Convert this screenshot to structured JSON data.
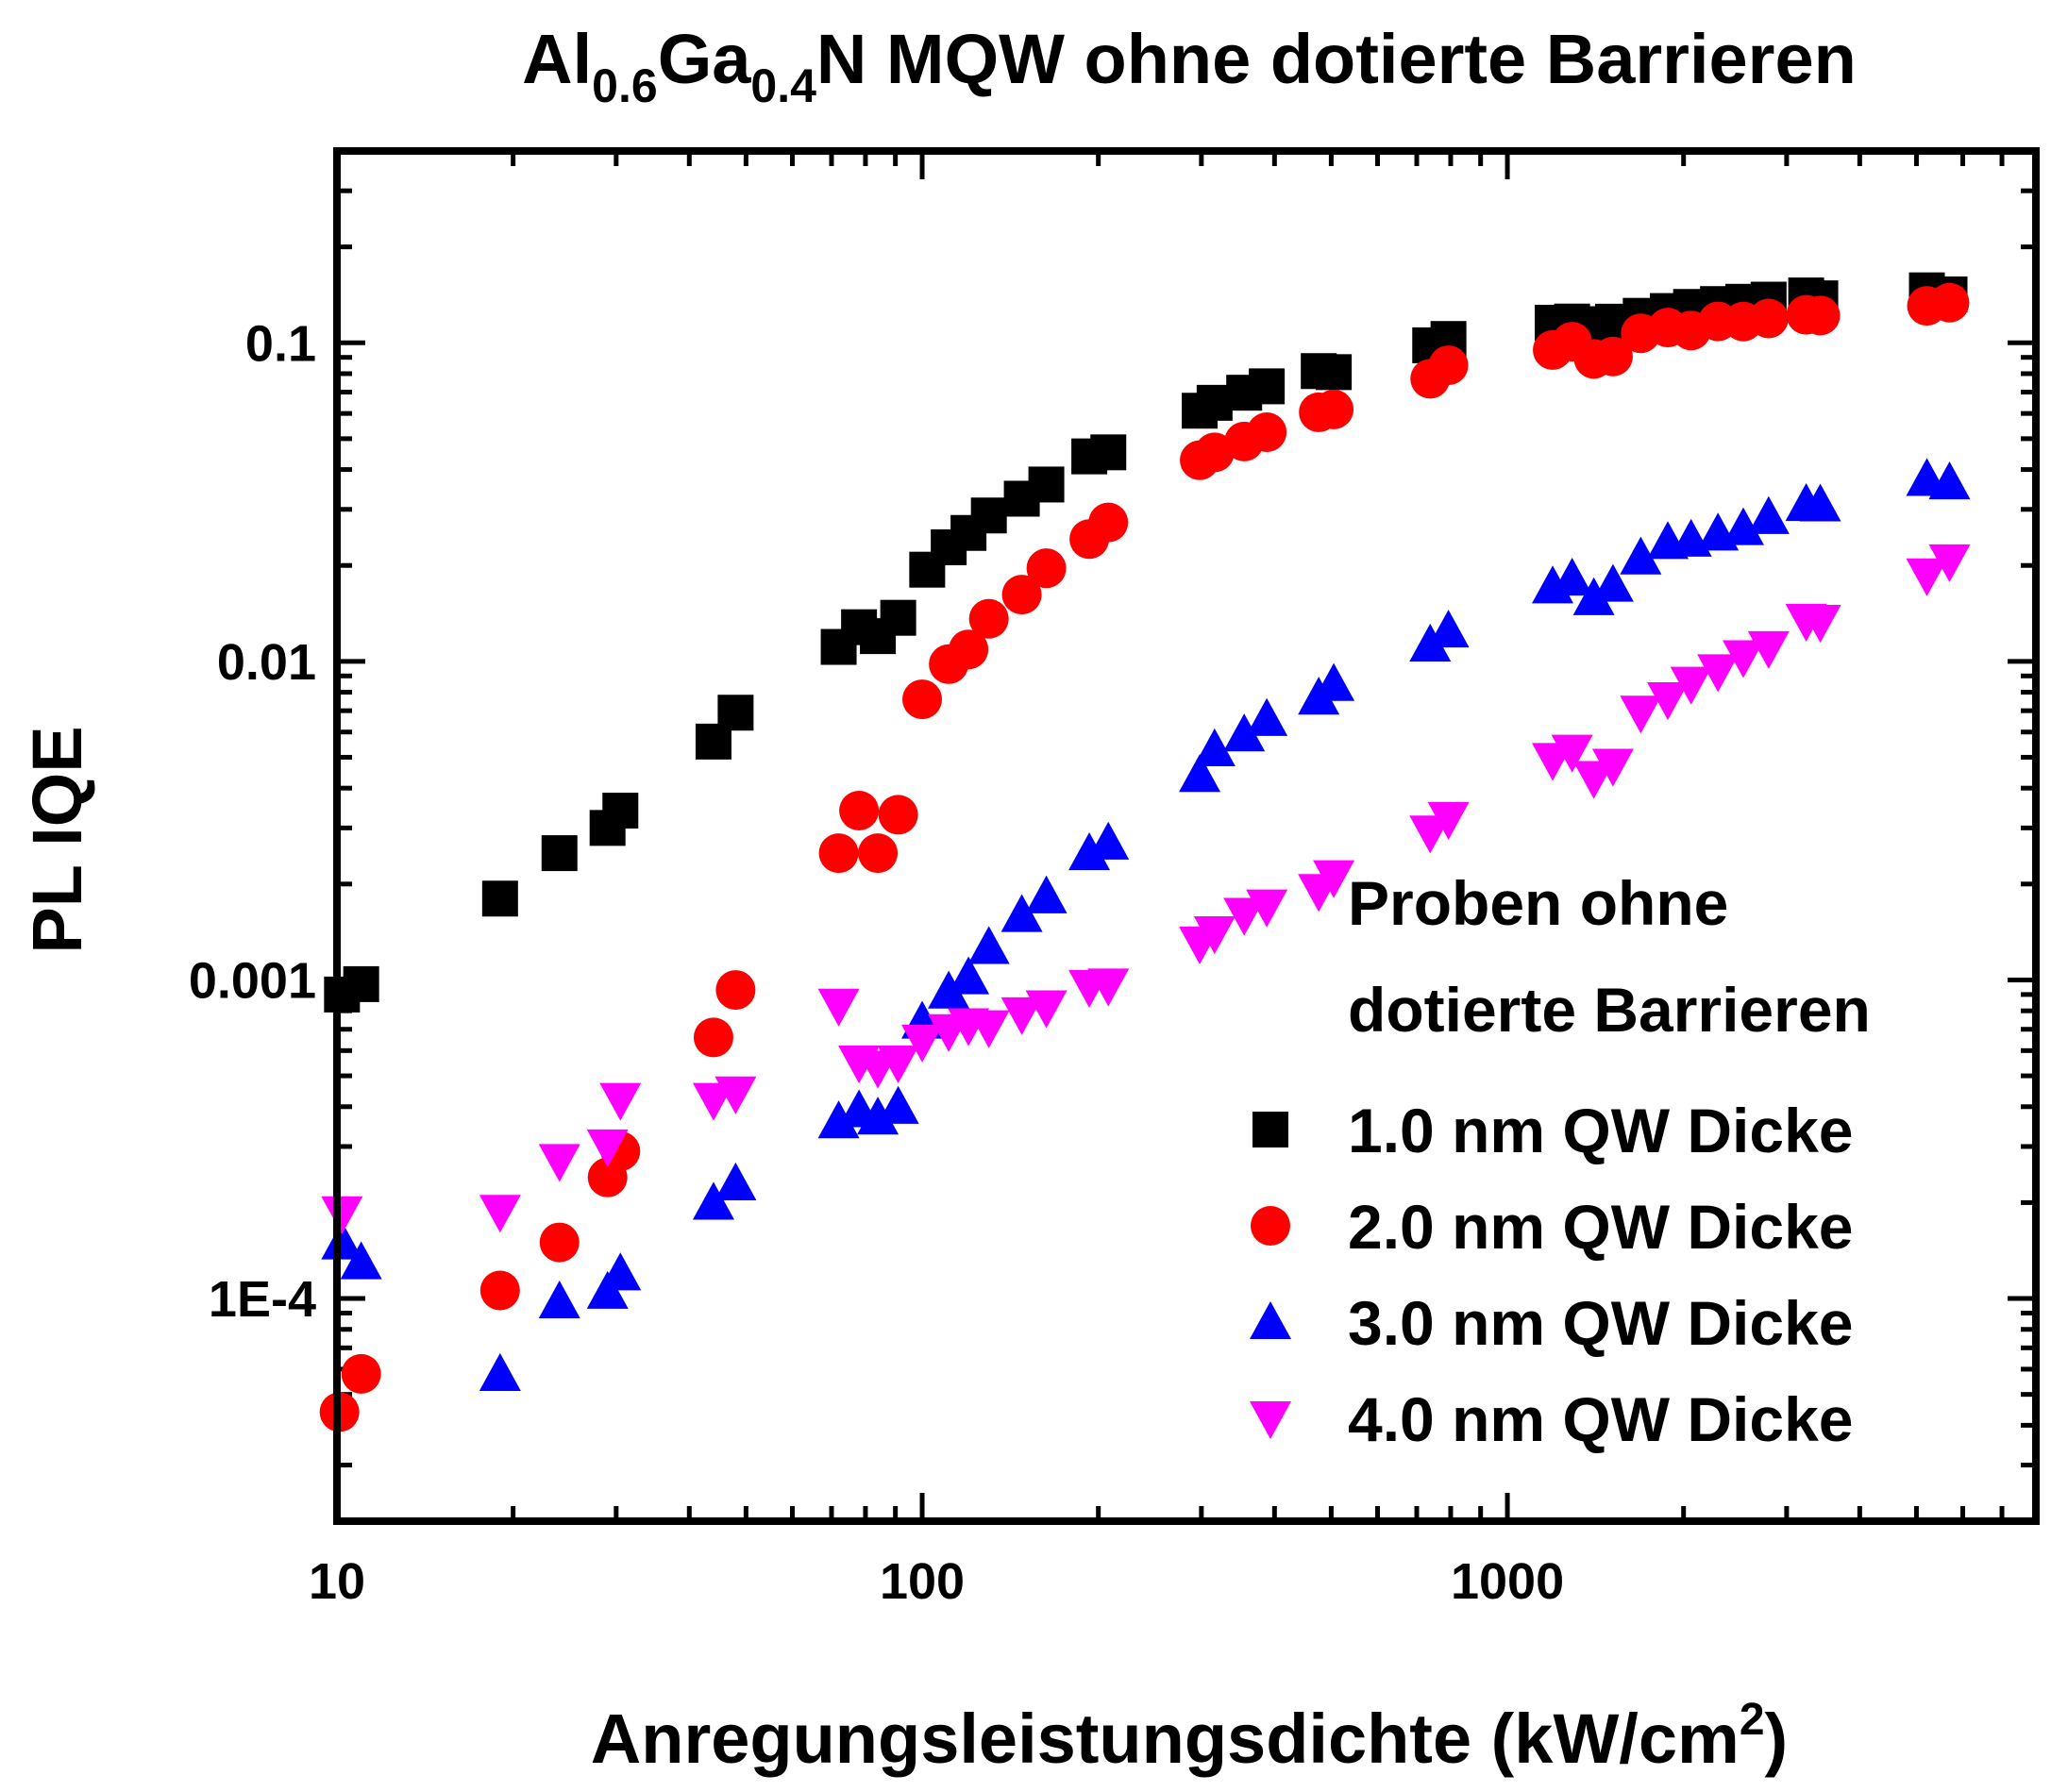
{
  "chart_data": {
    "type": "scatter",
    "title": {
      "prefix": "Al",
      "sub1": "0.6",
      "mid": "Ga",
      "sub2": "0.4",
      "suffix": "N MQW ohne dotierte Barrieren"
    },
    "xlabel": {
      "main": "Anregungsleistungsdichte (kW/cm",
      "sup": "2",
      "end": ")"
    },
    "ylabel": "PL IQE",
    "xscale": "log",
    "yscale": "log",
    "xlim": [
      10,
      8000
    ],
    "ylim": [
      2e-05,
      0.4
    ],
    "grid": false,
    "xticks": [
      {
        "value": 10,
        "label": "10"
      },
      {
        "value": 100,
        "label": "100"
      },
      {
        "value": 1000,
        "label": "1000"
      }
    ],
    "yticks": [
      {
        "value": 0.0001,
        "label": "1E-4"
      },
      {
        "value": 0.001,
        "label": "0.001"
      },
      {
        "value": 0.01,
        "label": "0.01"
      },
      {
        "value": 0.1,
        "label": "0.1"
      }
    ],
    "legend": {
      "position": "bottom-right",
      "title_line1": "Proben ohne",
      "title_line2": "dotierte Barrieren"
    },
    "series": [
      {
        "name": "1.0 nm QW Dicke",
        "marker": "square",
        "color": "#000000",
        "points": [
          [
            10.2,
            0.0009
          ],
          [
            11,
            0.00097
          ],
          [
            19,
            0.0018
          ],
          [
            24,
            0.0025
          ],
          [
            29,
            0.003
          ],
          [
            30.5,
            0.0034
          ],
          [
            44,
            0.0056
          ],
          [
            48,
            0.0069
          ],
          [
            72,
            0.0111
          ],
          [
            78,
            0.0128
          ],
          [
            84,
            0.012
          ],
          [
            91,
            0.0137
          ],
          [
            102,
            0.0194
          ],
          [
            111,
            0.0228
          ],
          [
            120,
            0.0253
          ],
          [
            130,
            0.0287
          ],
          [
            148,
            0.0324
          ],
          [
            163,
            0.0359
          ],
          [
            193,
            0.044
          ],
          [
            208,
            0.0453
          ],
          [
            298,
            0.0612
          ],
          [
            316,
            0.0648
          ],
          [
            355,
            0.0697
          ],
          [
            388,
            0.073
          ],
          [
            476,
            0.0815
          ],
          [
            505,
            0.0809
          ],
          [
            738,
            0.0982
          ],
          [
            793,
            0.1028
          ],
          [
            1195,
            0.1156
          ],
          [
            1290,
            0.1166
          ],
          [
            1405,
            0.1144
          ],
          [
            1515,
            0.1165
          ],
          [
            1690,
            0.1215
          ],
          [
            1880,
            0.1258
          ],
          [
            2060,
            0.1296
          ],
          [
            2290,
            0.1323
          ],
          [
            2530,
            0.1345
          ],
          [
            2795,
            0.1366
          ],
          [
            3240,
            0.1408
          ],
          [
            3425,
            0.1379
          ],
          [
            5210,
            0.1461
          ],
          [
            5695,
            0.1419
          ]
        ]
      },
      {
        "name": "2.0 nm QW Dicke",
        "marker": "circle",
        "color": "#ff0000",
        "points": [
          [
            10.1,
            4.4e-05
          ],
          [
            11,
            5.8e-05
          ],
          [
            19,
            0.000106
          ],
          [
            24,
            0.00015
          ],
          [
            29,
            0.00024
          ],
          [
            30.5,
            0.00029
          ],
          [
            44,
            0.00066
          ],
          [
            48,
            0.00093
          ],
          [
            72,
            0.0025
          ],
          [
            78,
            0.0034
          ],
          [
            84,
            0.0025
          ],
          [
            91,
            0.0033
          ],
          [
            100,
            0.0076
          ],
          [
            111,
            0.0098
          ],
          [
            120,
            0.0109
          ],
          [
            130,
            0.0136
          ],
          [
            148,
            0.0162
          ],
          [
            163,
            0.0196
          ],
          [
            193,
            0.0242
          ],
          [
            208,
            0.0273
          ],
          [
            298,
            0.0428
          ],
          [
            316,
            0.0453
          ],
          [
            355,
            0.049
          ],
          [
            388,
            0.0524
          ],
          [
            476,
            0.0605
          ],
          [
            505,
            0.0618
          ],
          [
            738,
            0.0771
          ],
          [
            793,
            0.085
          ],
          [
            1195,
            0.0949
          ],
          [
            1290,
            0.1008
          ],
          [
            1405,
            0.089
          ],
          [
            1515,
            0.0906
          ],
          [
            1690,
            0.1071
          ],
          [
            1880,
            0.1116
          ],
          [
            2060,
            0.1093
          ],
          [
            2290,
            0.1167
          ],
          [
            2530,
            0.1166
          ],
          [
            2795,
            0.1192
          ],
          [
            3240,
            0.1224
          ],
          [
            3425,
            0.1218
          ],
          [
            5210,
            0.1306
          ],
          [
            5695,
            0.1336
          ]
        ]
      },
      {
        "name": "3.0 nm QW Dicke",
        "marker": "triangle-up",
        "color": "#0000ff",
        "points": [
          [
            10.2,
            0.00015
          ],
          [
            11,
            0.00013
          ],
          [
            19,
            5.8e-05
          ],
          [
            24,
            9.8e-05
          ],
          [
            29,
            0.000105
          ],
          [
            30.5,
            0.00012
          ],
          [
            44,
            0.0002
          ],
          [
            48,
            0.00023
          ],
          [
            72,
            0.00036
          ],
          [
            78,
            0.00039
          ],
          [
            84,
            0.00037
          ],
          [
            91,
            0.0004
          ],
          [
            100,
            0.00074
          ],
          [
            111,
            0.00092
          ],
          [
            120,
            0.00102
          ],
          [
            130,
            0.00127
          ],
          [
            148,
            0.0016
          ],
          [
            163,
            0.00183
          ],
          [
            193,
            0.0025
          ],
          [
            208,
            0.0027
          ],
          [
            298,
            0.0044
          ],
          [
            316,
            0.0053
          ],
          [
            355,
            0.0059
          ],
          [
            388,
            0.0066
          ],
          [
            476,
            0.0077
          ],
          [
            505,
            0.0085
          ],
          [
            738,
            0.0113
          ],
          [
            793,
            0.0125
          ],
          [
            1195,
            0.0172
          ],
          [
            1290,
            0.0182
          ],
          [
            1405,
            0.0158
          ],
          [
            1515,
            0.0174
          ],
          [
            1690,
            0.0212
          ],
          [
            1880,
            0.0237
          ],
          [
            2060,
            0.0241
          ],
          [
            2290,
            0.0252
          ],
          [
            2530,
            0.0262
          ],
          [
            2795,
            0.0284
          ],
          [
            3240,
            0.0312
          ],
          [
            3425,
            0.0311
          ],
          [
            5210,
            0.0374
          ],
          [
            5695,
            0.0365
          ]
        ]
      },
      {
        "name": "4.0 nm QW Dicke",
        "marker": "triangle-down",
        "color": "#ff00ff",
        "points": [
          [
            10.2,
            0.000185
          ],
          [
            19,
            0.000187
          ],
          [
            24,
            0.00027
          ],
          [
            29,
            0.0003
          ],
          [
            30.5,
            0.00042
          ],
          [
            44,
            0.00042
          ],
          [
            48,
            0.00044
          ],
          [
            72,
            0.00083
          ],
          [
            78,
            0.00055
          ],
          [
            84,
            0.00053
          ],
          [
            91,
            0.00055
          ],
          [
            100,
            0.00064
          ],
          [
            111,
            0.00069
          ],
          [
            120,
            0.00072
          ],
          [
            130,
            0.00071
          ],
          [
            148,
            0.00078
          ],
          [
            163,
            0.00082
          ],
          [
            193,
            0.00095
          ],
          [
            208,
            0.00096
          ],
          [
            298,
            0.0013
          ],
          [
            316,
            0.0014
          ],
          [
            355,
            0.0016
          ],
          [
            388,
            0.0017
          ],
          [
            476,
            0.0019
          ],
          [
            505,
            0.0021
          ],
          [
            738,
            0.0029
          ],
          [
            793,
            0.0032
          ],
          [
            1195,
            0.0049
          ],
          [
            1290,
            0.0052
          ],
          [
            1405,
            0.0043
          ],
          [
            1515,
            0.0047
          ],
          [
            1690,
            0.0069
          ],
          [
            1880,
            0.0076
          ],
          [
            2060,
            0.0085
          ],
          [
            2290,
            0.0093
          ],
          [
            2530,
            0.0103
          ],
          [
            2795,
            0.011
          ],
          [
            3240,
            0.0134
          ],
          [
            3425,
            0.0133
          ],
          [
            5210,
            0.0186
          ],
          [
            5695,
            0.0206
          ]
        ]
      }
    ]
  }
}
